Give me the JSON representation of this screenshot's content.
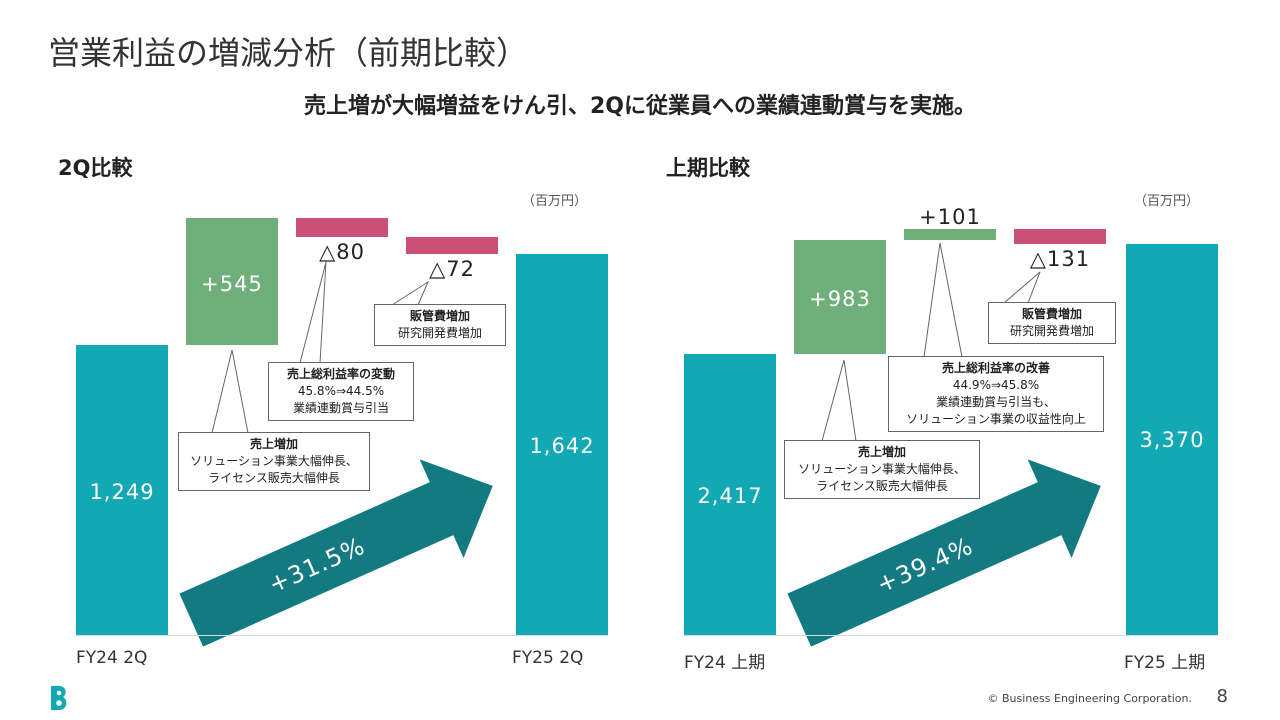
{
  "page": {
    "title": "営業利益の増減分析（前期比較）",
    "subtitle": "売上増が大幅増益をけん引、2Qに従業員への業績連動賞与を実施。",
    "copyright": "© Business Engineering Corporation.",
    "page_number": "8",
    "logo_icon": "b-logo-icon"
  },
  "colors": {
    "base": "#12a9b4",
    "increase": "#6fb07a",
    "decrease": "#cc4f78",
    "arrow": "#127a80"
  },
  "chart_data": [
    {
      "type": "waterfall",
      "title": "2Q比較",
      "unit": "（百万円）",
      "categories": [
        "FY24 2Q",
        "売上増加",
        "売上総利益率の変動",
        "販管費増加",
        "FY25 2Q"
      ],
      "values": [
        1249,
        545,
        -80,
        -72,
        1642
      ],
      "value_labels": [
        "1,249",
        "+545",
        "△80",
        "△72",
        "1,642"
      ],
      "growth_label": "+31.5%",
      "callouts": {
        "sales": {
          "head": "売上増加",
          "lines": [
            "ソリューション事業大幅伸長、",
            "ライセンス販売大幅伸長"
          ]
        },
        "margin": {
          "head": "売上総利益率の変動",
          "lines": [
            "45.8%⇒44.5%",
            "業績連動賞与引当"
          ]
        },
        "sga": {
          "head": "販管費増加",
          "lines": [
            "研究開発費増加"
          ]
        }
      }
    },
    {
      "type": "waterfall",
      "title": "上期比較",
      "unit": "（百万円）",
      "categories": [
        "FY24 上期",
        "売上増加",
        "売上総利益率の改善",
        "販管費増加",
        "FY25 上期"
      ],
      "values": [
        2417,
        983,
        101,
        -131,
        3370
      ],
      "value_labels": [
        "2,417",
        "+983",
        "+101",
        "△131",
        "3,370"
      ],
      "growth_label": "+39.4%",
      "callouts": {
        "sales": {
          "head": "売上増加",
          "lines": [
            "ソリューション事業大幅伸長、",
            "ライセンス販売大幅伸長"
          ]
        },
        "margin": {
          "head": "売上総利益率の改善",
          "lines": [
            "44.9%⇒45.8%",
            "業績連動賞与引当も、",
            "ソリューション事業の収益性向上"
          ]
        },
        "sga": {
          "head": "販管費増加",
          "lines": [
            "研究開発費増加"
          ]
        }
      }
    }
  ]
}
